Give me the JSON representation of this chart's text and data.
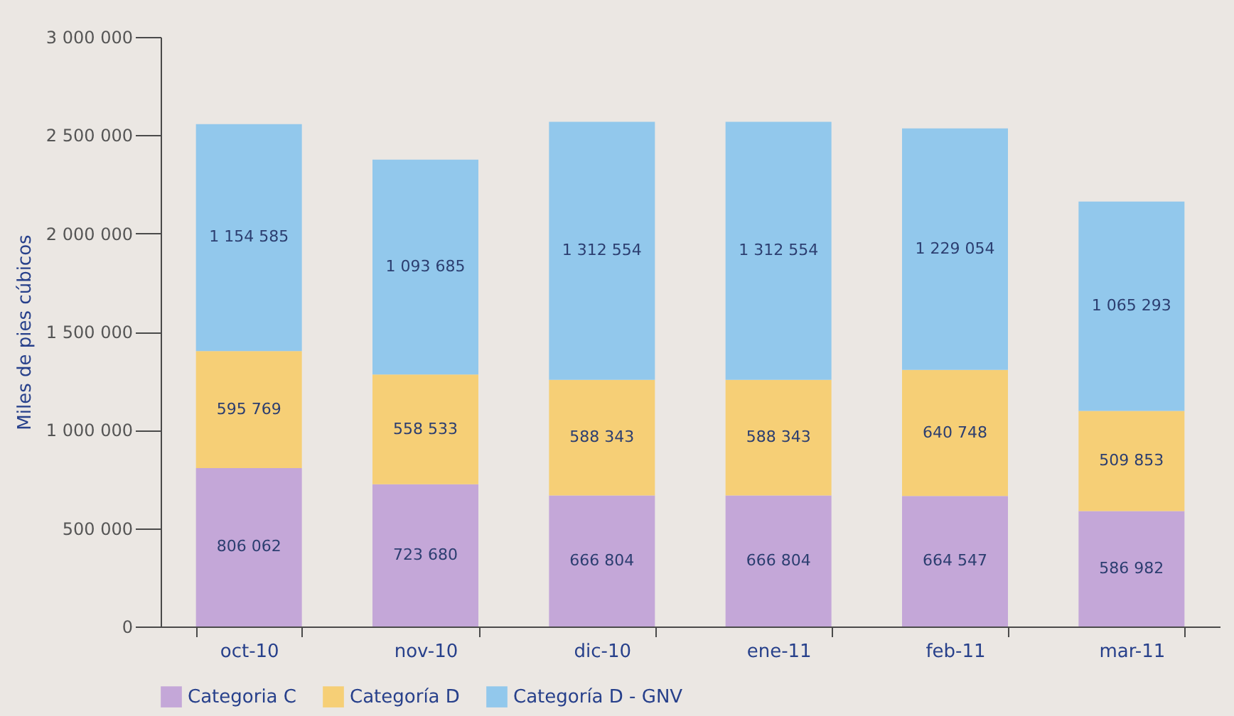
{
  "chart_data": {
    "type": "bar",
    "stacked": true,
    "ylabel": "Miles de pies cúbicos",
    "categories": [
      "oct-10",
      "nov-10",
      "dic-10",
      "ene-11",
      "feb-11",
      "mar-11"
    ],
    "series": [
      {
        "name": "Categoria C",
        "color": "#c4a7d8",
        "values": [
          806062,
          723680,
          666804,
          666804,
          664547,
          586982
        ],
        "value_labels": [
          "806 062",
          "723 680",
          "666 804",
          "666 804",
          "664 547",
          "586 982"
        ]
      },
      {
        "name": "Categoría D",
        "color": "#f6cf76",
        "values": [
          595769,
          558533,
          588343,
          588343,
          640748,
          509853
        ],
        "value_labels": [
          "595 769",
          "558 533",
          "588 343",
          "588 343",
          "640 748",
          "509 853"
        ]
      },
      {
        "name": "Categoría D - GNV",
        "color": "#92c8ec",
        "values": [
          1154585,
          1093685,
          1312554,
          1312554,
          1229054,
          1065293
        ],
        "value_labels": [
          "1 154 585",
          "1 093 685",
          "1 312 554",
          "1 312 554",
          "1 229 054",
          "1 065 293"
        ]
      }
    ],
    "ylim": [
      0,
      3000000
    ],
    "yticks": [
      0,
      {
        "value": 500000,
        "label": "500 000"
      },
      {
        "value": 1000000,
        "label": "1 000 000"
      },
      {
        "value": 1500000,
        "label": "1 500 000"
      },
      {
        "value": 2000000,
        "label": "2 000 000"
      },
      {
        "value": 2500000,
        "label": "2 500 000"
      },
      {
        "value": 3000000,
        "label": "3 000 000"
      }
    ],
    "grid": false,
    "legend": "bottom"
  }
}
